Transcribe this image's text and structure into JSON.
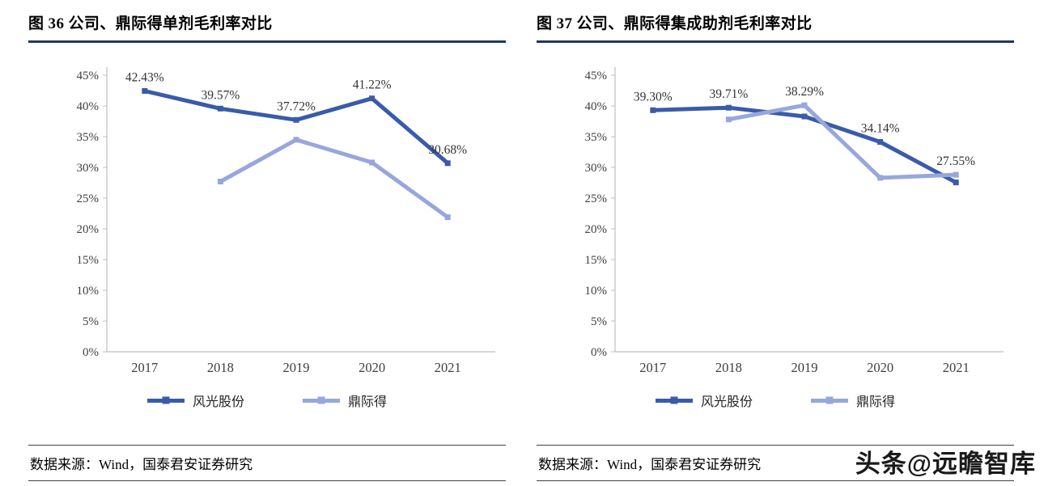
{
  "watermark": {
    "text": "头条@远瞻智库"
  },
  "colors": {
    "axis": "#BFBFBF",
    "tick_label": "#404040",
    "title_underline": "#1F3864",
    "separator": "#404040",
    "series_dark": "#3A5BA8",
    "series_light": "#97A7DB"
  },
  "charts": [
    {
      "title": "图 36 公司、鼎际得单剂毛利率对比",
      "source": "数据来源：Wind，国泰君安证券研究",
      "chart_data": {
        "type": "line",
        "x": [
          "2017",
          "2018",
          "2019",
          "2020",
          "2021"
        ],
        "ylim": [
          0,
          45
        ],
        "ytick_step": 5,
        "ytick_labels": [
          "0%",
          "5%",
          "10%",
          "15%",
          "20%",
          "25%",
          "30%",
          "35%",
          "40%",
          "45%"
        ],
        "legend_position": "bottom",
        "grid": false,
        "series": [
          {
            "name": "风光股份",
            "color": "#3A5BA8",
            "values": [
              42.43,
              39.57,
              37.72,
              41.22,
              30.68
            ],
            "labels": [
              "42.43%",
              "39.57%",
              "37.72%",
              "41.22%",
              "30.68%"
            ]
          },
          {
            "name": "鼎际得",
            "color": "#97A7DB",
            "values": [
              null,
              27.7,
              34.5,
              30.8,
              21.9
            ],
            "labels": []
          }
        ]
      }
    },
    {
      "title": "图 37 公司、鼎际得集成助剂毛利率对比",
      "source": "数据来源：Wind，国泰君安证券研究",
      "chart_data": {
        "type": "line",
        "x": [
          "2017",
          "2018",
          "2019",
          "2020",
          "2021"
        ],
        "ylim": [
          0,
          45
        ],
        "ytick_step": 5,
        "ytick_labels": [
          "0%",
          "5%",
          "10%",
          "15%",
          "20%",
          "25%",
          "30%",
          "35%",
          "40%",
          "45%"
        ],
        "legend_position": "bottom",
        "grid": false,
        "series": [
          {
            "name": "风光股份",
            "color": "#3A5BA8",
            "values": [
              39.3,
              39.71,
              38.29,
              34.14,
              27.55
            ],
            "labels": [
              "39.30%",
              "39.71%",
              "38.29%",
              "34.14%",
              "27.55%"
            ]
          },
          {
            "name": "鼎际得",
            "color": "#97A7DB",
            "values": [
              null,
              37.8,
              40.1,
              28.3,
              28.8
            ],
            "labels": []
          }
        ]
      }
    }
  ]
}
